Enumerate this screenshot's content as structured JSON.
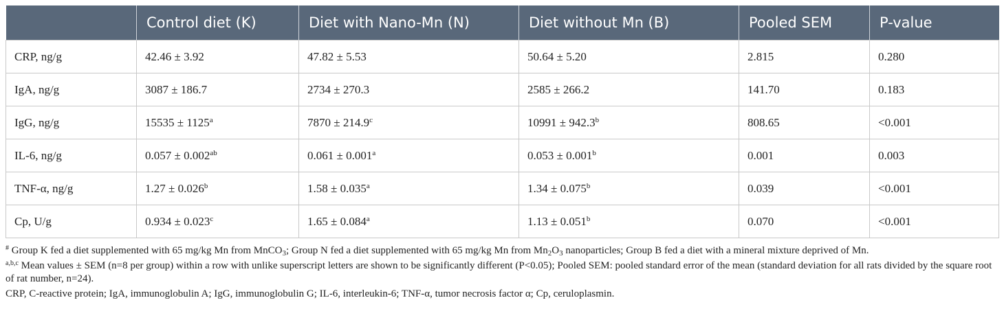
{
  "table": {
    "headers": [
      "",
      "Control diet (K)",
      "Diet with Nano-Mn (N)",
      "Diet without Mn (B)",
      "Pooled SEM",
      "P-value"
    ],
    "rows": [
      {
        "label": "CRP, ng/g",
        "cells": [
          {
            "v": "42.46 ± 3.92",
            "s": ""
          },
          {
            "v": "47.82 ± 5.53",
            "s": ""
          },
          {
            "v": "50.64 ± 5.20",
            "s": ""
          }
        ],
        "sem": "2.815",
        "p": "0.280"
      },
      {
        "label": "IgA, ng/g",
        "cells": [
          {
            "v": "3087 ± 186.7",
            "s": ""
          },
          {
            "v": "2734 ± 270.3",
            "s": ""
          },
          {
            "v": "2585 ± 266.2",
            "s": ""
          }
        ],
        "sem": "141.70",
        "p": "0.183"
      },
      {
        "label": "IgG, ng/g",
        "cells": [
          {
            "v": "15535 ± 1125",
            "s": "a"
          },
          {
            "v": "7870 ± 214.9",
            "s": "c"
          },
          {
            "v": "10991 ± 942.3",
            "s": "b"
          }
        ],
        "sem": "808.65",
        "p": "<0.001"
      },
      {
        "label": "IL-6, ng/g",
        "cells": [
          {
            "v": "0.057 ± 0.002",
            "s": "ab"
          },
          {
            "v": "0.061 ± 0.001",
            "s": "a"
          },
          {
            "v": "0.053 ± 0.001",
            "s": "b"
          }
        ],
        "sem": "0.001",
        "p": "0.003"
      },
      {
        "label": "TNF-α, ng/g",
        "cells": [
          {
            "v": "1.27 ± 0.026",
            "s": "b"
          },
          {
            "v": "1.58 ± 0.035",
            "s": "a"
          },
          {
            "v": "1.34 ± 0.075",
            "s": "b"
          }
        ],
        "sem": "0.039",
        "p": "<0.001"
      },
      {
        "label": "Cp, U/g",
        "cells": [
          {
            "v": "0.934 ± 0.023",
            "s": "c"
          },
          {
            "v": "1.65 ± 0.084",
            "s": "a"
          },
          {
            "v": "1.13 ± 0.051",
            "s": "b"
          }
        ],
        "sem": "0.070",
        "p": "<0.001"
      }
    ]
  },
  "notes": {
    "n1_mark": "#",
    "n1_a": " Group K fed a diet supplemented with 65 mg/kg Mn from MnCO",
    "n1_sub1": "3",
    "n1_b": "; Group N fed a diet supplemented with 65 mg/kg Mn from Mn",
    "n1_sub2": "2",
    "n1_c": "O",
    "n1_sub3": "3",
    "n1_d": " nanoparticles; Group B fed a diet with a mineral mixture deprived of Mn.",
    "n2_mark": "a,b,c",
    "n2_text": " Mean values ± SEM (n=8 per group) within a row with unlike superscript letters are shown to be significantly different (P<0.05); Pooled SEM: pooled standard error of the mean (standard deviation for all rats divided by the square root of rat number, n=24).",
    "n3_text": "CRP, C-reactive protein; IgA, immunoglobulin A; IgG, immunoglobulin G; IL-6, interleukin-6; TNF-α, tumor necrosis factor α; Cp, ceruloplasmin."
  }
}
